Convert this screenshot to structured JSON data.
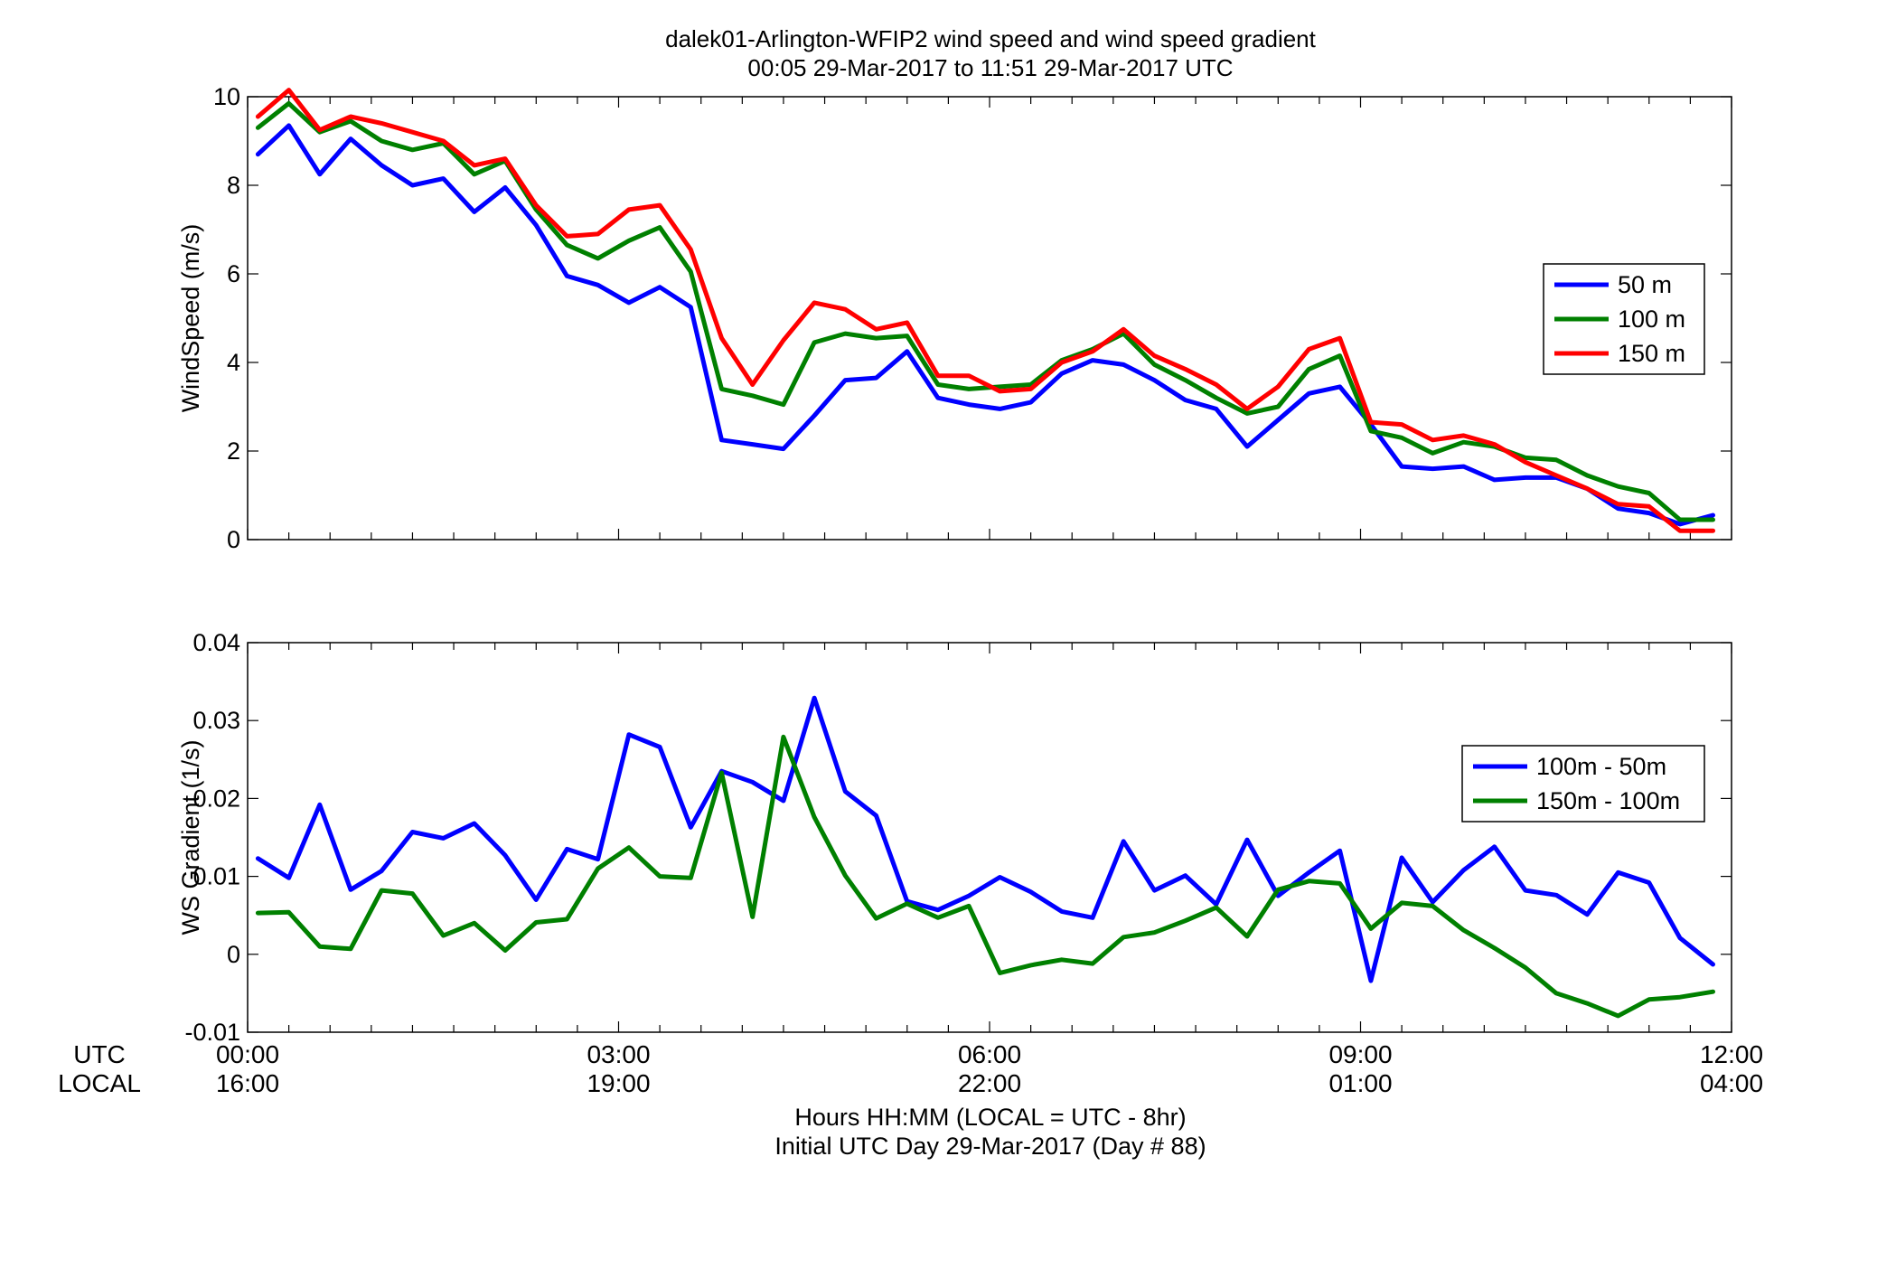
{
  "figure": {
    "title_line1": "dalek01-Arlington-WFIP2  wind speed and wind speed gradient",
    "title_line2": "00:05 29-Mar-2017 to 11:51 29-Mar-2017  UTC",
    "xlabel_line1": "Hours HH:MM  (LOCAL = UTC - 8hr)",
    "xlabel_line2": "Initial UTC Day 29-Mar-2017 (Day # 88)",
    "utc_label": "UTC",
    "local_label": "LOCAL",
    "x_ticks_utc": [
      "00:00",
      "03:00",
      "06:00",
      "09:00",
      "12:00"
    ],
    "x_ticks_local": [
      "16:00",
      "19:00",
      "22:00",
      "01:00",
      "04:00"
    ]
  },
  "chart_data": [
    {
      "type": "line",
      "ylabel": "WindSpeed (m/s)",
      "ylim": [
        0,
        10
      ],
      "xlim": [
        0,
        12
      ],
      "y_ticks": [
        "0",
        "2",
        "4",
        "6",
        "8",
        "10"
      ],
      "legend_position": "right",
      "x": [
        0.083,
        0.333,
        0.583,
        0.833,
        1.083,
        1.333,
        1.583,
        1.833,
        2.083,
        2.333,
        2.583,
        2.833,
        3.083,
        3.333,
        3.583,
        3.833,
        4.083,
        4.333,
        4.583,
        4.833,
        5.083,
        5.333,
        5.583,
        5.833,
        6.083,
        6.333,
        6.583,
        6.833,
        7.083,
        7.333,
        7.583,
        7.833,
        8.083,
        8.333,
        8.583,
        8.833,
        9.083,
        9.333,
        9.583,
        9.833,
        10.083,
        10.333,
        10.583,
        10.833,
        11.083,
        11.333,
        11.583,
        11.85
      ],
      "series": [
        {
          "name": "50 m",
          "color": "#0000ff",
          "values": [
            8.7,
            9.35,
            8.25,
            9.05,
            8.45,
            8.0,
            8.15,
            7.4,
            7.95,
            7.1,
            5.95,
            5.75,
            5.35,
            5.7,
            5.25,
            2.25,
            2.15,
            2.05,
            2.8,
            3.6,
            3.65,
            4.25,
            3.2,
            3.05,
            2.95,
            3.1,
            3.75,
            4.05,
            3.95,
            3.6,
            3.15,
            2.95,
            2.1,
            2.7,
            3.3,
            3.45,
            2.6,
            1.65,
            1.6,
            1.65,
            1.35,
            1.4,
            1.4,
            1.15,
            0.7,
            0.6,
            0.35,
            0.55
          ]
        },
        {
          "name": "100 m",
          "color": "#008000",
          "values": [
            9.3,
            9.85,
            9.2,
            9.45,
            9.0,
            8.8,
            8.95,
            8.25,
            8.55,
            7.45,
            6.65,
            6.35,
            6.75,
            7.05,
            6.05,
            3.4,
            3.25,
            3.05,
            4.45,
            4.65,
            4.55,
            4.6,
            3.5,
            3.4,
            3.45,
            3.5,
            4.05,
            4.3,
            4.65,
            3.95,
            3.6,
            3.2,
            2.85,
            3.0,
            3.85,
            4.15,
            2.45,
            2.3,
            1.95,
            2.2,
            2.1,
            1.85,
            1.8,
            1.45,
            1.2,
            1.05,
            0.45,
            0.45
          ]
        },
        {
          "name": "150 m",
          "color": "#ff0000",
          "values": [
            9.55,
            10.15,
            9.25,
            9.55,
            9.4,
            9.2,
            9.0,
            8.45,
            8.6,
            7.55,
            6.85,
            6.9,
            7.45,
            7.55,
            6.55,
            4.55,
            3.5,
            4.5,
            5.35,
            5.2,
            4.75,
            4.9,
            3.7,
            3.7,
            3.35,
            3.4,
            4.0,
            4.25,
            4.75,
            4.15,
            3.85,
            3.5,
            2.95,
            3.45,
            4.3,
            4.55,
            2.65,
            2.6,
            2.25,
            2.35,
            2.15,
            1.75,
            1.45,
            1.15,
            0.8,
            0.75,
            0.2,
            0.2
          ]
        }
      ]
    },
    {
      "type": "line",
      "ylabel": "WS Gradient (1/s)",
      "ylim": [
        -0.01,
        0.04
      ],
      "xlim": [
        0,
        12
      ],
      "y_ticks": [
        "-0.01",
        "0",
        "0.01",
        "0.02",
        "0.03",
        "0.04"
      ],
      "legend_position": "right",
      "x": [
        0.083,
        0.333,
        0.583,
        0.833,
        1.083,
        1.333,
        1.583,
        1.833,
        2.083,
        2.333,
        2.583,
        2.833,
        3.083,
        3.333,
        3.583,
        3.833,
        4.083,
        4.333,
        4.583,
        4.833,
        5.083,
        5.333,
        5.583,
        5.833,
        6.083,
        6.333,
        6.583,
        6.833,
        7.083,
        7.333,
        7.583,
        7.833,
        8.083,
        8.333,
        8.583,
        8.833,
        9.083,
        9.333,
        9.583,
        9.833,
        10.083,
        10.333,
        10.583,
        10.833,
        11.083,
        11.333,
        11.583,
        11.85
      ],
      "series": [
        {
          "name": "100m - 50m",
          "color": "#0000ff",
          "values": [
            0.0123,
            0.0098,
            0.0192,
            0.0083,
            0.0107,
            0.0157,
            0.0149,
            0.0168,
            0.0127,
            0.007,
            0.0135,
            0.0122,
            0.0282,
            0.0266,
            0.0163,
            0.0235,
            0.0221,
            0.0197,
            0.0329,
            0.0209,
            0.0178,
            0.0068,
            0.0057,
            0.0075,
            0.0099,
            0.008,
            0.0055,
            0.0047,
            0.0145,
            0.0082,
            0.0101,
            0.0064,
            0.0147,
            0.0075,
            0.0105,
            0.0133,
            -0.0034,
            0.0124,
            0.0067,
            0.0108,
            0.0138,
            0.0082,
            0.0076,
            0.0051,
            0.0105,
            0.0092,
            0.0021,
            -0.0013
          ]
        },
        {
          "name": "150m - 100m",
          "color": "#008000",
          "values": [
            0.0053,
            0.0054,
            0.001,
            0.0007,
            0.0082,
            0.0078,
            0.0024,
            0.004,
            0.0005,
            0.0041,
            0.0045,
            0.011,
            0.0137,
            0.01,
            0.0098,
            0.0233,
            0.0048,
            0.0279,
            0.0176,
            0.0101,
            0.0046,
            0.0065,
            0.0047,
            0.0062,
            -0.0024,
            -0.0014,
            -0.0007,
            -0.0012,
            0.0022,
            0.0028,
            0.0043,
            0.006,
            0.0023,
            0.0083,
            0.0094,
            0.0091,
            0.0033,
            0.0066,
            0.0062,
            0.0031,
            0.0008,
            -0.0017,
            -0.005,
            -0.0063,
            -0.0079,
            -0.0058,
            -0.0055,
            -0.0048
          ]
        }
      ]
    }
  ]
}
